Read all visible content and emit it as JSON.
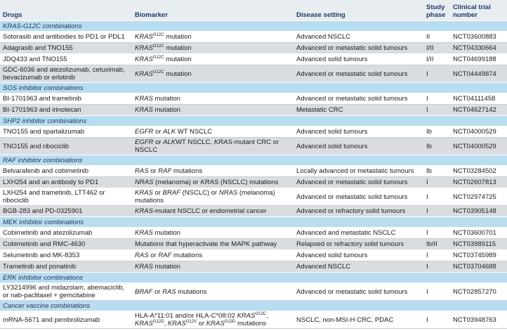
{
  "table": {
    "header": [
      "Drugs",
      "Biomarker",
      "Disease setting",
      "Study phase",
      "Clinical trial number"
    ],
    "sections": [
      {
        "title": "KRAS-G12C combinations",
        "rows": [
          {
            "drugs": "Sotorasib and antibodies to PD1 or PDL1",
            "biomarker": [
              {
                "text": "KRAS",
                "style": "italic"
              },
              {
                "text": "G12C",
                "style": "sup"
              },
              " mutation"
            ],
            "disease": "Advanced NSCLC",
            "phase": "II",
            "trial": "NCT03600883"
          },
          {
            "drugs": "Adagrasib and TNO155",
            "biomarker": [
              {
                "text": "KRAS",
                "style": "italic"
              },
              {
                "text": "G12C",
                "style": "sup"
              },
              " mutation"
            ],
            "disease": "Advanced or metastatic solid tumours",
            "phase": "I/II",
            "trial": "NCT04330664"
          },
          {
            "drugs": "JDQ433 and TNO155",
            "biomarker": [
              {
                "text": "KRAS",
                "style": "italic"
              },
              {
                "text": "G12C",
                "style": "sup"
              },
              " mutation"
            ],
            "disease": "Advanced solid tumours",
            "phase": "I/II",
            "trial": "NCT04699188"
          },
          {
            "drugs": "GDC-6036 and atezolizumab, cetuximab, bevacizumab or erlotinib",
            "biomarker": [
              {
                "text": "KRAS",
                "style": "italic"
              },
              {
                "text": "G12C",
                "style": "sup"
              },
              " mutation"
            ],
            "disease": "Advanced or metastatic solid tumours",
            "phase": "I",
            "trial": "NCT04449874"
          }
        ]
      },
      {
        "title": "SOS inhibitor combinations",
        "rows": [
          {
            "drugs": "BI-1701963 and trametinib",
            "biomarker": [
              {
                "text": "KRAS",
                "style": "italic"
              },
              " mutation"
            ],
            "disease": "Advanced or metastatic solid tumours",
            "phase": "I",
            "trial": "NCT04111458"
          },
          {
            "drugs": "BI-1701963 and irinotecan",
            "biomarker": [
              {
                "text": "KRAS",
                "style": "italic"
              },
              " mutation"
            ],
            "disease": "Metastatic CRC",
            "phase": "I",
            "trial": "NCT04627142"
          }
        ]
      },
      {
        "title": "SHP2 inhibitor combinations",
        "rows": [
          {
            "drugs": "TNO155 and spartalizumab",
            "biomarker": [
              {
                "text": "EGFR",
                "style": "italic"
              },
              " or ",
              {
                "text": "ALK",
                "style": "italic"
              },
              " WT NSCLC"
            ],
            "disease": "Advanced solid tumours",
            "phase": "Ib",
            "trial": "NCT04000529"
          },
          {
            "drugs": "TNO155 and ribociclib",
            "biomarker": [
              {
                "text": "EGFR",
                "style": "italic"
              },
              " or ",
              {
                "text": "ALK",
                "style": "italic"
              },
              "WT NSCLC, ",
              {
                "text": "KRAS",
                "style": "italic"
              },
              "-mutant CRC or NSCLC"
            ],
            "disease": "Advanced solid tumours",
            "phase": "Ib",
            "trial": "NCT04000529"
          }
        ]
      },
      {
        "title": "RAF inhibitor combinations",
        "rows": [
          {
            "drugs": "Belvarafenib and cobimetinib",
            "biomarker": [
              {
                "text": "RAS",
                "style": "italic"
              },
              " or ",
              {
                "text": "RAF",
                "style": "italic"
              },
              " mutations"
            ],
            "disease": "Locally advanced or metastatic tumours",
            "phase": "Ib",
            "trial": "NCT03284502"
          },
          {
            "drugs": "LXH254 and an antibody to PD1",
            "biomarker": [
              {
                "text": "NRAS",
                "style": "italic"
              },
              " (melanoma) or ",
              {
                "text": "KRAS",
                "style": "italic"
              },
              " (NSCLC) mutations"
            ],
            "disease": "Advanced or metastatic solid tumours",
            "phase": "I",
            "trial": "NCT02607813"
          },
          {
            "drugs": "LXH254 and trametinib, LTT462 or ribociclib",
            "biomarker": [
              {
                "text": "KRAS",
                "style": "italic"
              },
              " or ",
              {
                "text": "BRAF",
                "style": "italic"
              },
              " (NSCLC) or ",
              {
                "text": "NRAS",
                "style": "italic"
              },
              " (melanoma) mutations"
            ],
            "disease": "Advanced or metastatic solid tumours",
            "phase": "I",
            "trial": "NCT02974725"
          },
          {
            "drugs": "BGB-283 and PD-0325901",
            "biomarker": [
              {
                "text": "KRAS",
                "style": "italic"
              },
              "-mutant NSCLC or endometrial cancer"
            ],
            "disease": "Advanced or refractory solid tumours",
            "phase": "I",
            "trial": "NCT03905148"
          }
        ]
      },
      {
        "title": "MEK inhibitor combinations",
        "rows": [
          {
            "drugs": "Cobimetinib and atezolizumab",
            "biomarker": [
              {
                "text": "KRAS",
                "style": "italic"
              },
              " mutation"
            ],
            "disease": "Advanced and metastatic NSCLC",
            "phase": "I",
            "trial": "NCT03600701"
          },
          {
            "drugs": "Cobimetinib and RMC-4630",
            "biomarker": [
              "Mutations that hyperactivate the MAPK pathway"
            ],
            "disease": "Relapsed or refractory solid tumours",
            "phase": "Ib/II",
            "trial": "NCT03989115"
          },
          {
            "drugs": "Selumetinib and MK-8353",
            "biomarker": [
              {
                "text": "RAS",
                "style": "italic"
              },
              " or ",
              {
                "text": "RAF",
                "style": "italic"
              },
              " mutations"
            ],
            "disease": "Advanced solid tumours",
            "phase": "I",
            "trial": "NCT03745989"
          },
          {
            "drugs": "Trametinib and ponatinib",
            "biomarker": [
              {
                "text": "KRAS",
                "style": "italic"
              },
              " mutation"
            ],
            "disease": "Advanced NSCLC",
            "phase": "I",
            "trial": "NCT03704688"
          }
        ]
      },
      {
        "title": "ERK inhibitor combinations",
        "rows": [
          {
            "drugs": "LY3214996 and midazolam, abemaciclib, or nab-paclitaxel + gemcitabine",
            "biomarker": [
              {
                "text": "BRAF",
                "style": "italic"
              },
              " or ",
              {
                "text": "RAS",
                "style": "italic"
              },
              " mutations"
            ],
            "disease": "Advanced or metastatic solid tumours",
            "phase": "I",
            "trial": "NCT02857270"
          }
        ]
      },
      {
        "title": "Cancer vaccine combinations",
        "rows": [
          {
            "drugs": "mRNA-5671 and pembrolizumab",
            "biomarker": [
              "HLA-A*11:01 and/or HLA-C*08:02 ",
              {
                "text": "KRAS",
                "style": "italic"
              },
              {
                "text": "G12C",
                "style": "sup"
              },
              ", ",
              {
                "text": "KRAS",
                "style": "italic"
              },
              {
                "text": "G12D",
                "style": "sup"
              },
              ", ",
              {
                "text": "KRAS",
                "style": "italic"
              },
              {
                "text": "G12V",
                "style": "sup"
              },
              " or ",
              {
                "text": "KRAS",
                "style": "italic"
              },
              {
                "text": "G13D",
                "style": "sup"
              },
              " mutations"
            ],
            "disease": "NSCLC, non-MSI-H CRC, PDAC",
            "phase": "I",
            "trial": "NCT03948763"
          }
        ]
      }
    ]
  }
}
